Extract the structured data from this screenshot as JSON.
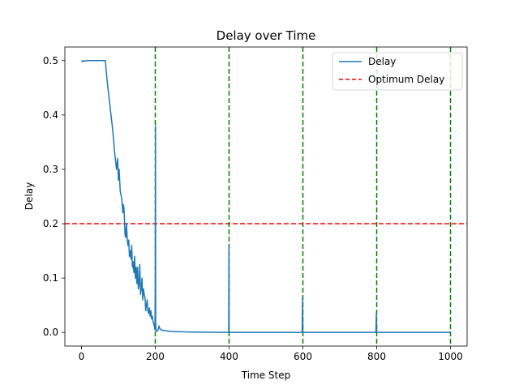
{
  "chart_data": {
    "type": "line",
    "title": "Delay over Time",
    "xlabel": "Time Step",
    "ylabel": "Delay",
    "xlim": [
      -45,
      1045
    ],
    "ylim": [
      -0.025,
      0.525
    ],
    "xticks": [
      0,
      200,
      400,
      600,
      800,
      1000
    ],
    "yticks": [
      0.0,
      0.1,
      0.2,
      0.3,
      0.4,
      0.5
    ],
    "xtick_labels": [
      "0",
      "200",
      "400",
      "600",
      "800",
      "1000"
    ],
    "ytick_labels": [
      "0.0",
      "0.1",
      "0.2",
      "0.3",
      "0.4",
      "0.5"
    ],
    "grid": false,
    "legend_position": "top-right",
    "series": [
      {
        "name": "Delay",
        "color": "#1f77b4",
        "style": "solid",
        "x": [
          0,
          3,
          6,
          10,
          15,
          20,
          30,
          40,
          50,
          60,
          63,
          65,
          67,
          70,
          75,
          80,
          85,
          90,
          95,
          98,
          100,
          102,
          105,
          108,
          110,
          112,
          113,
          115,
          117,
          118,
          120,
          121,
          122,
          124,
          126,
          128,
          130,
          132,
          134,
          136,
          138,
          140,
          142,
          144,
          146,
          148,
          150,
          152,
          154,
          156,
          158,
          160,
          162,
          164,
          166,
          168,
          170,
          172,
          174,
          176,
          178,
          180,
          182,
          184,
          186,
          188,
          190,
          192,
          194,
          196,
          198,
          199,
          200,
          200.5,
          201,
          202,
          204,
          206,
          208,
          210,
          212,
          215,
          220,
          230,
          240,
          260,
          280,
          300,
          330,
          360,
          399,
          399.5,
          400,
          401,
          402,
          420,
          450,
          500,
          550,
          598,
          599,
          600,
          601,
          602,
          650,
          700,
          750,
          798,
          799,
          800,
          801,
          802,
          850,
          900,
          950,
          1000
        ],
        "values": [
          0.5,
          0.498,
          0.5,
          0.499,
          0.5,
          0.5,
          0.5,
          0.5,
          0.5,
          0.5,
          0.5,
          0.5,
          0.48,
          0.46,
          0.43,
          0.4,
          0.37,
          0.33,
          0.3,
          0.32,
          0.28,
          0.3,
          0.26,
          0.25,
          0.24,
          0.22,
          0.235,
          0.23,
          0.2,
          0.18,
          0.175,
          0.19,
          0.2,
          0.17,
          0.16,
          0.17,
          0.14,
          0.15,
          0.135,
          0.16,
          0.12,
          0.13,
          0.11,
          0.14,
          0.1,
          0.12,
          0.09,
          0.12,
          0.08,
          0.09,
          0.125,
          0.07,
          0.08,
          0.1,
          0.06,
          0.08,
          0.07,
          0.065,
          0.04,
          0.05,
          0.06,
          0.04,
          0.035,
          0.045,
          0.03,
          0.04,
          0.025,
          0.03,
          0.02,
          0.015,
          0.01,
          0.005,
          0.08,
          0.38,
          0.02,
          0.004,
          0.002,
          0.003,
          0.005,
          0.012,
          0.008,
          0.005,
          0.004,
          0.003,
          0.002,
          0.0015,
          0.001,
          0.0008,
          0.0005,
          0.0003,
          0.0002,
          0.16,
          0.0003,
          0.0002,
          0.0001,
          0.0001,
          0.0001,
          0.0001,
          0.0001,
          0.0001,
          0.065,
          0.0001,
          0.0001,
          0.0001,
          0.0001,
          0.0001,
          0.0001,
          0.0001,
          0.035,
          0.0001,
          0.0001,
          0.0001,
          0.0001,
          0.0001,
          0.0001,
          0.0001
        ]
      },
      {
        "name": "Optimum Delay",
        "color": "#ff0000",
        "style": "dashed",
        "y": 0.2
      }
    ],
    "vertical_lines": {
      "color": "#008000",
      "style": "dashed",
      "x": [
        200,
        400,
        600,
        800,
        1000
      ]
    }
  }
}
